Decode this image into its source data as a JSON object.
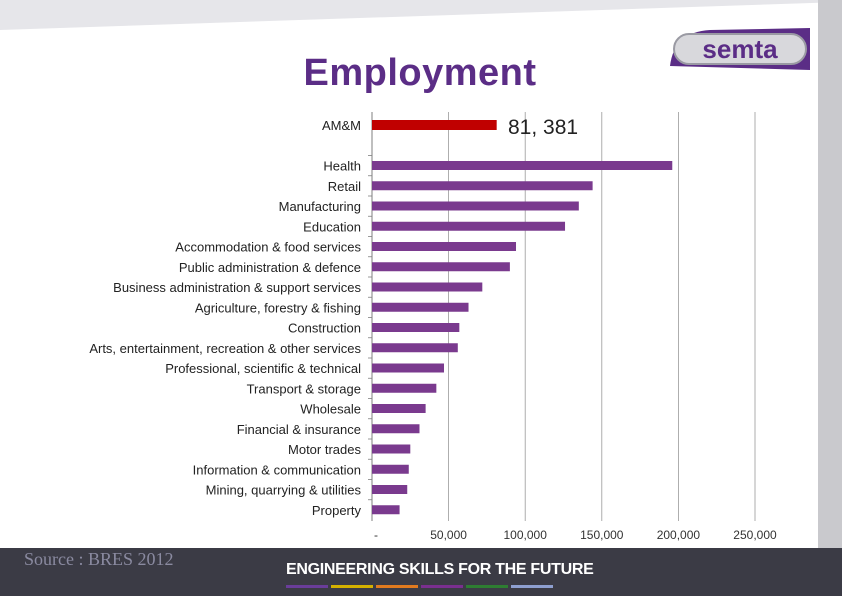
{
  "header": {
    "title": "Employment",
    "logo_text": "semta"
  },
  "footer": {
    "source": "Source : BRES 2012",
    "tagline": "ENGINEERING SKILLS FOR THE FUTURE",
    "stripe_colors": [
      "#6a3d9a",
      "#d4b000",
      "#e07a1f",
      "#7a2f8f",
      "#2e7d32",
      "#8e9fd0"
    ]
  },
  "chart_data": {
    "type": "bar",
    "orientation": "horizontal",
    "title": "Employment",
    "highlight": {
      "label": "AM&M",
      "value": 81381,
      "value_label": "81, 381",
      "color": "#c00000"
    },
    "categories": [
      "Health",
      "Retail",
      "Manufacturing",
      "Education",
      "Accommodation & food services",
      "Public administration & defence",
      "Business administration & support services",
      "Agriculture, forestry & fishing",
      "Construction",
      "Arts, entertainment, recreation & other services",
      "Professional, scientific & technical",
      "Transport & storage",
      "Wholesale",
      "Financial & insurance",
      "Motor trades",
      "Information & communication",
      "Mining, quarrying & utilities",
      "Property"
    ],
    "values": [
      196000,
      144000,
      135000,
      126000,
      94000,
      90000,
      72000,
      63000,
      57000,
      56000,
      47000,
      42000,
      35000,
      31000,
      25000,
      24000,
      23000,
      18000
    ],
    "bar_color": "#7a3a8e",
    "xlim": [
      0,
      250000
    ],
    "xticks": [
      0,
      50000,
      100000,
      150000,
      200000,
      250000
    ],
    "xtick_labels": [
      "-",
      "50,000",
      "100,000",
      "150,000",
      "200,000",
      "250,000"
    ],
    "grid": true
  }
}
